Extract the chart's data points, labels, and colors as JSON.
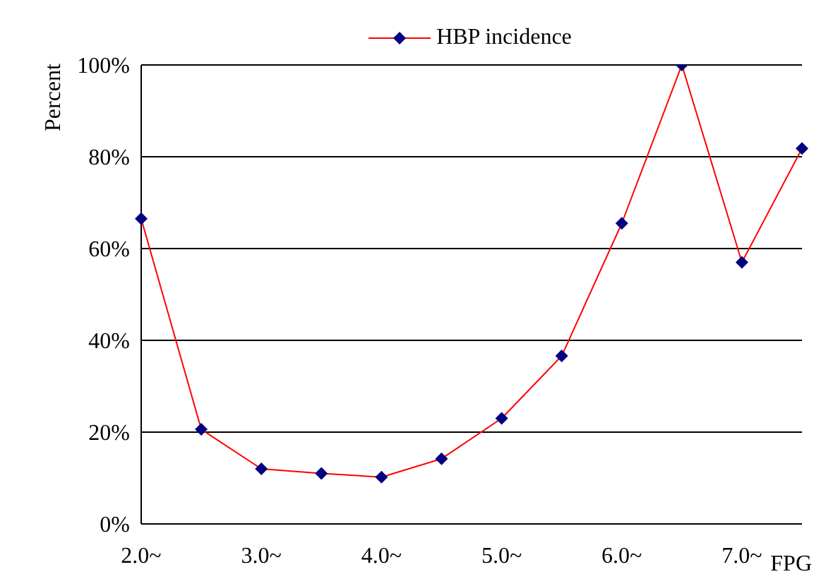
{
  "chart_data": {
    "type": "line",
    "xlabel": "FPG",
    "ylabel": "Percent",
    "categories": [
      "2.0~",
      null,
      "3.0~",
      null,
      "4.0~",
      null,
      "5.0~",
      null,
      "6.0~",
      null,
      "7.0~",
      null
    ],
    "series": [
      {
        "name": "HBP incidence",
        "color": "#ff0000",
        "values": [
          66.5,
          20.6,
          12,
          11,
          10.2,
          14.2,
          23,
          36.6,
          65.5,
          100,
          57,
          81.8
        ]
      }
    ],
    "ylim": [
      0,
      100
    ],
    "yticks": [
      {
        "value": 0,
        "label": "0%"
      },
      {
        "value": 20,
        "label": "20%"
      },
      {
        "value": 40,
        "label": "40%"
      },
      {
        "value": 60,
        "label": "60%"
      },
      {
        "value": 80,
        "label": "80%"
      },
      {
        "value": 100,
        "label": "100%"
      }
    ],
    "grid": "y",
    "legend": "top",
    "marker": "diamond",
    "line_style": "solid"
  }
}
